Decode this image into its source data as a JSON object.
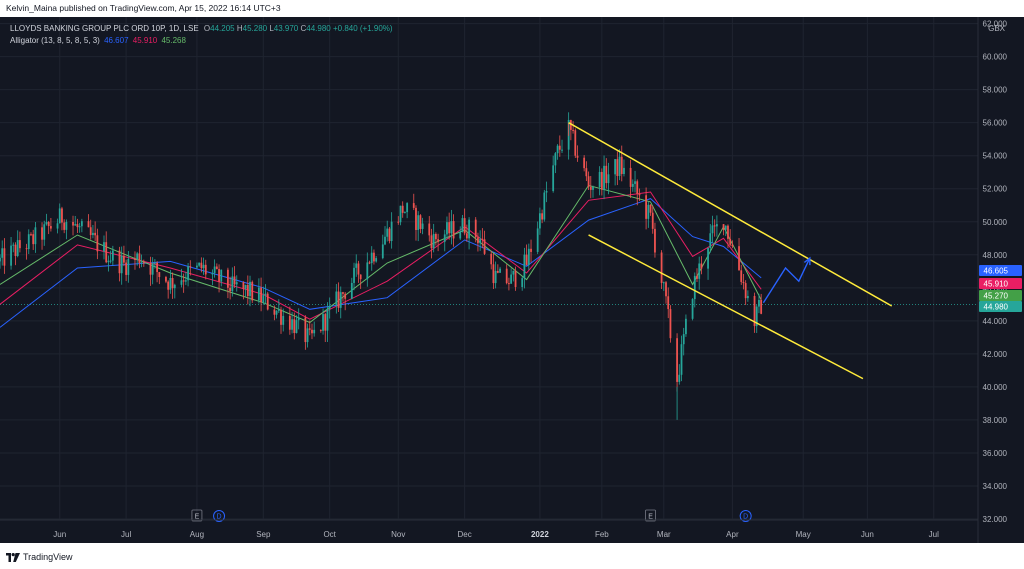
{
  "header": {
    "publisher_line": "Kelvin_Maina published on TradingView.com, Apr 15, 2022 16:14 UTC+3"
  },
  "legend": {
    "symbol": "LLOYDS BANKING GROUP PLC ORD 10P, 1D, LSE",
    "o_label": "O",
    "o_value": "44.205",
    "h_label": "H",
    "h_value": "45.280",
    "l_label": "L",
    "l_value": "43.970",
    "c_label": "C",
    "c_value": "44.980",
    "change": "+0.840 (+1.90%)",
    "alligator_label": "Alligator (13, 8, 5, 8, 5, 3)",
    "jaw": "46.607",
    "teeth": "45.910",
    "lips": "45.268"
  },
  "footer": {
    "brand": "TradingView"
  },
  "colors": {
    "background": "#131722",
    "up": "#26a69a",
    "down": "#ef5350",
    "jaw": "#2962ff",
    "teeth": "#e91e63",
    "lips": "#66bb6a",
    "channel": "#ffeb3b",
    "arrow": "#2962ff",
    "grid": "#1f2430"
  },
  "chart_data": {
    "type": "candlestick",
    "currency": "GBX",
    "y_ticks": [
      "32.000",
      "34.000",
      "36.000",
      "38.000",
      "40.000",
      "42.000",
      "44.000",
      "46.000",
      "48.000",
      "50.000",
      "52.000",
      "54.000",
      "56.000",
      "58.000",
      "60.000",
      "62.000"
    ],
    "x_ticks": [
      "Jun",
      "Jul",
      "Aug",
      "Sep",
      "Oct",
      "Nov",
      "Dec",
      "2022",
      "Feb",
      "Mar",
      "Apr",
      "May",
      "Jun",
      "Jul"
    ],
    "ylim": [
      32,
      62.4
    ],
    "xlim": [
      "2021-05-05",
      "2022-07-21"
    ],
    "price_tags": [
      {
        "value": "46.605",
        "color": "#2962ff"
      },
      {
        "value": "45.910",
        "color": "#e91e63"
      },
      {
        "value": "45.270",
        "color": "#43a047"
      },
      {
        "value": "44.980",
        "color": "#26a69a"
      }
    ],
    "events": [
      {
        "date": "2021-08-02",
        "label": "E",
        "kind": "earnings"
      },
      {
        "date": "2021-08-12",
        "label": "D",
        "kind": "dividend"
      },
      {
        "date": "2022-02-23",
        "label": "E",
        "kind": "earnings"
      },
      {
        "date": "2022-04-07",
        "label": "D",
        "kind": "dividend"
      }
    ],
    "close_series": [
      [
        "2021-05-05",
        47.6
      ],
      [
        "2021-05-12",
        48.3
      ],
      [
        "2021-05-19",
        48.8
      ],
      [
        "2021-05-26",
        49.5
      ],
      [
        "2021-06-02",
        50.3
      ],
      [
        "2021-06-09",
        49.6
      ],
      [
        "2021-06-16",
        48.9
      ],
      [
        "2021-06-23",
        48.0
      ],
      [
        "2021-06-30",
        47.4
      ],
      [
        "2021-07-07",
        47.9
      ],
      [
        "2021-07-14",
        47.1
      ],
      [
        "2021-07-21",
        46.3
      ],
      [
        "2021-07-28",
        46.8
      ],
      [
        "2021-08-04",
        47.2
      ],
      [
        "2021-08-11",
        46.6
      ],
      [
        "2021-08-18",
        46.0
      ],
      [
        "2021-08-25",
        45.8
      ],
      [
        "2021-09-01",
        45.3
      ],
      [
        "2021-09-08",
        44.5
      ],
      [
        "2021-09-15",
        43.8
      ],
      [
        "2021-09-22",
        42.8
      ],
      [
        "2021-09-29",
        44.1
      ],
      [
        "2021-10-06",
        45.5
      ],
      [
        "2021-10-13",
        46.8
      ],
      [
        "2021-10-20",
        48.0
      ],
      [
        "2021-10-27",
        49.3
      ],
      [
        "2021-11-03",
        50.8
      ],
      [
        "2021-11-10",
        50.0
      ],
      [
        "2021-11-17",
        48.9
      ],
      [
        "2021-11-24",
        49.4
      ],
      [
        "2021-12-01",
        49.8
      ],
      [
        "2021-12-08",
        49.0
      ],
      [
        "2021-12-15",
        46.6
      ],
      [
        "2021-12-22",
        46.4
      ],
      [
        "2021-12-29",
        47.5
      ],
      [
        "2022-01-05",
        50.8
      ],
      [
        "2022-01-12",
        54.2
      ],
      [
        "2022-01-17",
        55.6
      ],
      [
        "2022-01-26",
        52.2
      ],
      [
        "2022-02-02",
        52.7
      ],
      [
        "2022-02-09",
        53.4
      ],
      [
        "2022-02-16",
        51.9
      ],
      [
        "2022-02-23",
        50.2
      ],
      [
        "2022-03-02",
        45.0
      ],
      [
        "2022-03-07",
        40.5
      ],
      [
        "2022-03-14",
        45.9
      ],
      [
        "2022-03-21",
        48.8
      ],
      [
        "2022-03-28",
        50.2
      ],
      [
        "2022-04-04",
        47.2
      ],
      [
        "2022-04-11",
        44.0
      ],
      [
        "2022-04-14",
        44.98
      ]
    ],
    "alligator": {
      "jaw": [
        [
          "2021-05-05",
          43.6
        ],
        [
          "2021-06-09",
          47.2
        ],
        [
          "2021-07-21",
          47.6
        ],
        [
          "2021-09-01",
          46.0
        ],
        [
          "2021-09-22",
          44.7
        ],
        [
          "2021-10-27",
          45.4
        ],
        [
          "2021-12-01",
          48.9
        ],
        [
          "2021-12-29",
          47.3
        ],
        [
          "2022-01-26",
          50.1
        ],
        [
          "2022-02-23",
          51.4
        ],
        [
          "2022-03-14",
          49.1
        ],
        [
          "2022-03-28",
          48.5
        ],
        [
          "2022-04-14",
          46.6
        ]
      ],
      "teeth": [
        [
          "2021-05-05",
          45.0
        ],
        [
          "2021-06-09",
          48.6
        ],
        [
          "2021-07-21",
          47.2
        ],
        [
          "2021-09-01",
          45.6
        ],
        [
          "2021-09-22",
          44.1
        ],
        [
          "2021-10-27",
          46.4
        ],
        [
          "2021-12-01",
          49.7
        ],
        [
          "2021-12-29",
          46.9
        ],
        [
          "2022-01-26",
          51.3
        ],
        [
          "2022-02-23",
          51.8
        ],
        [
          "2022-03-14",
          47.9
        ],
        [
          "2022-03-28",
          49.0
        ],
        [
          "2022-04-14",
          45.91
        ]
      ],
      "lips": [
        [
          "2021-05-05",
          46.2
        ],
        [
          "2021-06-09",
          49.2
        ],
        [
          "2021-07-21",
          46.9
        ],
        [
          "2021-09-01",
          45.1
        ],
        [
          "2021-09-22",
          43.9
        ],
        [
          "2021-10-27",
          47.5
        ],
        [
          "2021-12-01",
          49.5
        ],
        [
          "2021-12-29",
          46.5
        ],
        [
          "2022-01-26",
          52.2
        ],
        [
          "2022-02-23",
          51.2
        ],
        [
          "2022-03-14",
          46.2
        ],
        [
          "2022-03-28",
          49.7
        ],
        [
          "2022-04-14",
          45.27
        ]
      ]
    },
    "trend_channel": {
      "upper": [
        [
          "2022-01-17",
          56.0
        ],
        [
          "2022-06-12",
          44.9
        ]
      ],
      "lower": [
        [
          "2022-01-26",
          49.2
        ],
        [
          "2022-05-30",
          40.5
        ]
      ]
    },
    "projection_arrow": [
      [
        "2022-04-15",
        45.1
      ],
      [
        "2022-04-25",
        47.2
      ],
      [
        "2022-05-01",
        46.4
      ],
      [
        "2022-05-06",
        47.8
      ]
    ]
  }
}
